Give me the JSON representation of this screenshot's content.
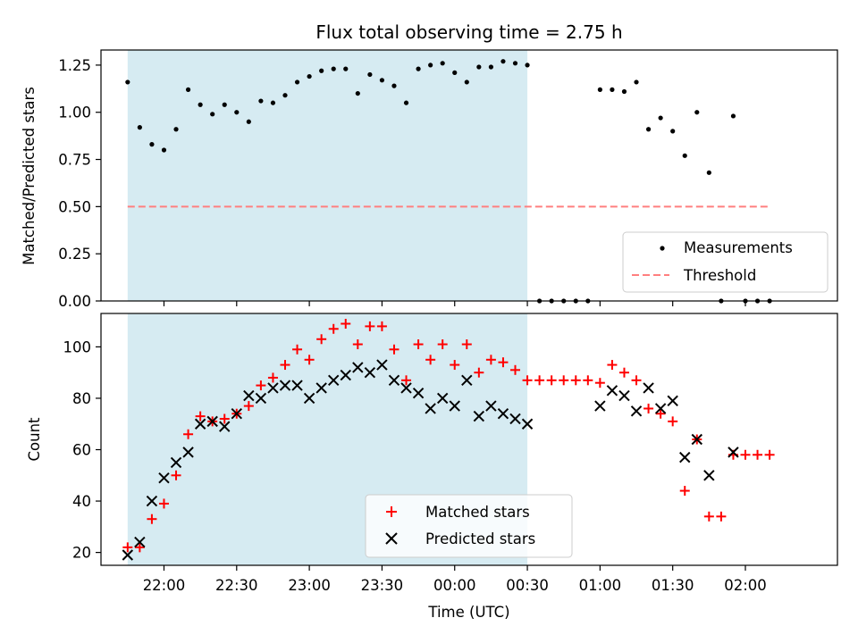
{
  "title": "Flux total observing time = 2.75 h",
  "colors": {
    "shade": "#add8e6",
    "measurement": "#000000",
    "threshold": "#ff7f7f",
    "matched": "#ff0000",
    "predicted": "#000000"
  },
  "chart_data": [
    {
      "type": "scatter",
      "panel": "top",
      "ylabel": "Matched/Predicted stars",
      "ylim": [
        0,
        1.33
      ],
      "yticks": [
        0,
        0.25,
        0.5,
        0.75,
        1.0,
        1.25
      ],
      "ytick_labels": [
        "0.00",
        "0.25",
        "0.50",
        "0.75",
        "1.00",
        "1.25"
      ],
      "xlim": [
        "21:34",
        "02:38"
      ],
      "shaded_span": [
        "21:45",
        "00:30"
      ],
      "legend_position": "lower-right",
      "series": [
        {
          "name": "Measurements",
          "marker": "dot",
          "x": [
            "21:45",
            "21:50",
            "21:55",
            "22:00",
            "22:05",
            "22:10",
            "22:15",
            "22:20",
            "22:25",
            "22:30",
            "22:35",
            "22:40",
            "22:45",
            "22:50",
            "22:55",
            "23:00",
            "23:05",
            "23:10",
            "23:15",
            "23:20",
            "23:25",
            "23:30",
            "23:35",
            "23:40",
            "23:45",
            "23:50",
            "23:55",
            "00:00",
            "00:05",
            "00:10",
            "00:15",
            "00:20",
            "00:25",
            "00:30",
            "00:35",
            "00:40",
            "00:45",
            "00:50",
            "00:55",
            "01:00",
            "01:05",
            "01:10",
            "01:15",
            "01:20",
            "01:25",
            "01:30",
            "01:35",
            "01:40",
            "01:45",
            "01:50",
            "01:55",
            "02:00",
            "02:05",
            "02:10"
          ],
          "y": [
            1.16,
            0.92,
            0.83,
            0.8,
            0.91,
            1.12,
            1.04,
            0.99,
            1.04,
            1.0,
            0.95,
            1.06,
            1.05,
            1.09,
            1.16,
            1.19,
            1.22,
            1.23,
            1.23,
            1.1,
            1.2,
            1.17,
            1.14,
            1.05,
            1.23,
            1.25,
            1.26,
            1.21,
            1.16,
            1.24,
            1.24,
            1.27,
            1.26,
            1.25,
            0.0,
            0.0,
            0.0,
            0.0,
            0.0,
            1.12,
            1.12,
            1.11,
            1.16,
            0.91,
            0.97,
            0.9,
            0.77,
            1.0,
            0.68,
            0.0,
            0.98,
            0.0,
            0.0,
            0.0
          ]
        },
        {
          "name": "Threshold",
          "style": "dashed-line",
          "x": [
            "21:45",
            "02:10"
          ],
          "y": [
            0.5,
            0.5
          ]
        }
      ]
    },
    {
      "type": "scatter",
      "panel": "bottom",
      "xlabel": "Time (UTC)",
      "ylabel": "Count",
      "ylim": [
        15,
        113
      ],
      "yticks": [
        20,
        40,
        60,
        80,
        100
      ],
      "xlim": [
        "21:34",
        "02:38"
      ],
      "xticks": [
        "22:00",
        "22:30",
        "23:00",
        "23:30",
        "00:00",
        "00:30",
        "01:00",
        "01:30",
        "02:00"
      ],
      "shaded_span": [
        "21:45",
        "00:30"
      ],
      "legend_position": "lower-center",
      "series": [
        {
          "name": "Matched stars",
          "marker": "plus",
          "x": [
            "21:45",
            "21:50",
            "21:55",
            "22:00",
            "22:05",
            "22:10",
            "22:15",
            "22:20",
            "22:25",
            "22:30",
            "22:35",
            "22:40",
            "22:45",
            "22:50",
            "22:55",
            "23:00",
            "23:05",
            "23:10",
            "23:15",
            "23:20",
            "23:25",
            "23:30",
            "23:35",
            "23:40",
            "23:45",
            "23:50",
            "23:55",
            "00:00",
            "00:05",
            "00:10",
            "00:15",
            "00:20",
            "00:25",
            "00:30",
            "00:35",
            "00:40",
            "00:45",
            "00:50",
            "00:55",
            "01:00",
            "01:05",
            "01:10",
            "01:15",
            "01:20",
            "01:25",
            "01:30",
            "01:35",
            "01:40",
            "01:45",
            "01:50",
            "01:55",
            "02:00",
            "02:05",
            "02:10"
          ],
          "y": [
            22,
            22,
            33,
            39,
            50,
            66,
            73,
            71,
            72,
            74,
            77,
            85,
            88,
            93,
            99,
            95,
            103,
            107,
            109,
            101,
            108,
            108,
            99,
            87,
            101,
            95,
            101,
            93,
            101,
            90,
            95,
            94,
            91,
            87,
            87,
            87,
            87,
            87,
            87,
            86,
            93,
            90,
            87,
            76,
            74,
            71,
            44,
            64,
            34,
            34,
            58,
            58,
            58,
            58
          ]
        },
        {
          "name": "Predicted stars",
          "marker": "x",
          "x": [
            "21:45",
            "21:50",
            "21:55",
            "22:00",
            "22:05",
            "22:10",
            "22:15",
            "22:20",
            "22:25",
            "22:30",
            "22:35",
            "22:40",
            "22:45",
            "22:50",
            "22:55",
            "23:00",
            "23:05",
            "23:10",
            "23:15",
            "23:20",
            "23:25",
            "23:30",
            "23:35",
            "23:40",
            "23:45",
            "23:50",
            "23:55",
            "00:00",
            "00:05",
            "00:10",
            "00:15",
            "00:20",
            "00:25",
            "00:30",
            "01:00",
            "01:05",
            "01:10",
            "01:15",
            "01:20",
            "01:25",
            "01:30",
            "01:35",
            "01:40",
            "01:45",
            "01:55"
          ],
          "y": [
            19,
            24,
            40,
            49,
            55,
            59,
            70,
            71,
            69,
            74,
            81,
            80,
            84,
            85,
            85,
            80,
            84,
            87,
            89,
            92,
            90,
            93,
            87,
            84,
            82,
            76,
            80,
            77,
            87,
            73,
            77,
            74,
            72,
            70,
            77,
            83,
            81,
            75,
            84,
            76,
            79,
            57,
            64,
            50,
            59
          ]
        }
      ]
    }
  ]
}
